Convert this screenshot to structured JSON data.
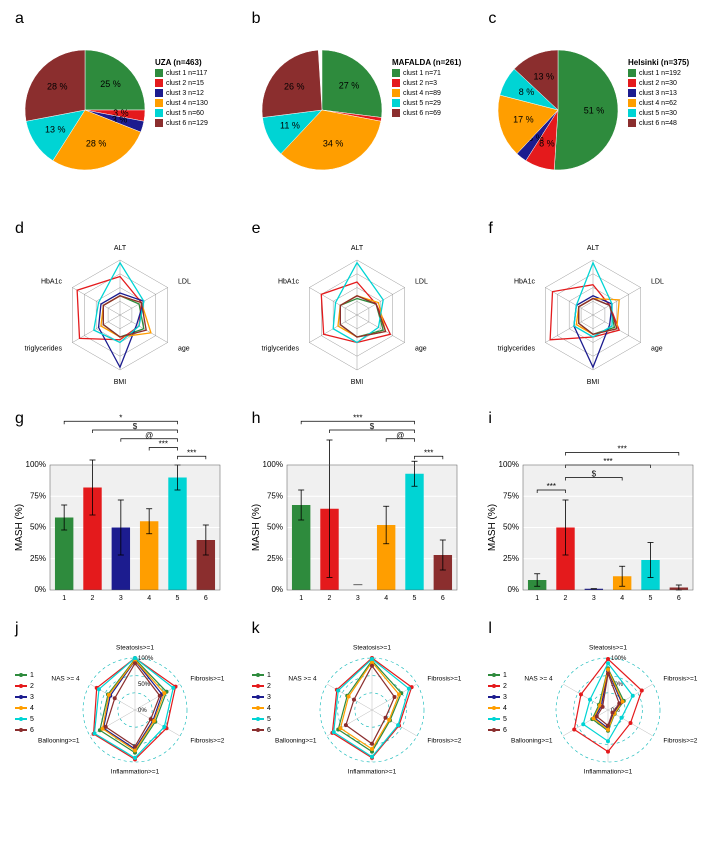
{
  "colors": {
    "c1": "#2e8b3d",
    "c2": "#e41a1c",
    "c3": "#1c1c8f",
    "c4": "#ff9e00",
    "c5": "#00d4d4",
    "c6": "#8b2e2e",
    "grid": "#808080",
    "axis": "#000000",
    "bg": "#ffffff"
  },
  "panels": {
    "a": {
      "label": "a"
    },
    "b": {
      "label": "b"
    },
    "c": {
      "label": "c"
    },
    "d": {
      "label": "d"
    },
    "e": {
      "label": "e"
    },
    "f": {
      "label": "f"
    },
    "g": {
      "label": "g"
    },
    "h": {
      "label": "h"
    },
    "i": {
      "label": "i"
    },
    "j": {
      "label": "j"
    },
    "k": {
      "label": "k"
    },
    "l": {
      "label": "l"
    }
  },
  "pies": {
    "a": {
      "title": "UZA (n=463)",
      "slices": [
        {
          "pct": 25,
          "color": "#2e8b3d",
          "label": "clust 1 n=117"
        },
        {
          "pct": 3,
          "color": "#e41a1c",
          "label": "clust 2 n=15"
        },
        {
          "pct": 3,
          "color": "#1c1c8f",
          "label": "clust 3 n=12"
        },
        {
          "pct": 28,
          "color": "#ff9e00",
          "label": "clust 4 n=130"
        },
        {
          "pct": 13,
          "color": "#00d4d4",
          "label": "clust 5 n=60"
        },
        {
          "pct": 28,
          "color": "#8b2e2e",
          "label": "clust 6 n=129"
        }
      ]
    },
    "b": {
      "title": "MAFALDA (n=261)",
      "slices": [
        {
          "pct": 27,
          "color": "#2e8b3d",
          "label": "clust 1 n=71"
        },
        {
          "pct": 1,
          "color": "#e41a1c",
          "label": "clust 2 n=3"
        },
        {
          "pct": 34,
          "color": "#ff9e00",
          "label": "clust 4 n=89"
        },
        {
          "pct": 11,
          "color": "#00d4d4",
          "label": "clust 5 n=29"
        },
        {
          "pct": 26,
          "color": "#8b2e2e",
          "label": "clust 6 n=69"
        }
      ]
    },
    "c": {
      "title": "Helsinki (n=375)",
      "slices": [
        {
          "pct": 51,
          "color": "#2e8b3d",
          "label": "clust 1 n=192"
        },
        {
          "pct": 8,
          "color": "#e41a1c",
          "label": "clust 2 n=30"
        },
        {
          "pct": 3,
          "color": "#1c1c8f",
          "label": "clust 3 n=13"
        },
        {
          "pct": 17,
          "color": "#ff9e00",
          "label": "clust 4 n=62"
        },
        {
          "pct": 8,
          "color": "#00d4d4",
          "label": "clust 5 n=30"
        },
        {
          "pct": 13,
          "color": "#8b2e2e",
          "label": "clust 6 n=48"
        }
      ]
    }
  },
  "radars1": {
    "axes": [
      "ALT",
      "LDL",
      "age",
      "BMI",
      "triglycerides",
      "HbA1c"
    ],
    "d": {
      "series": [
        {
          "color": "#2e8b3d",
          "values": [
            0.35,
            0.4,
            0.5,
            0.4,
            0.35,
            0.35
          ]
        },
        {
          "color": "#e41a1c",
          "values": [
            0.7,
            0.45,
            0.4,
            0.45,
            0.85,
            0.9
          ]
        },
        {
          "color": "#1c1c8f",
          "values": [
            0.4,
            0.5,
            0.35,
            0.95,
            0.45,
            0.4
          ]
        },
        {
          "color": "#ff9e00",
          "values": [
            0.35,
            0.45,
            0.65,
            0.4,
            0.4,
            0.35
          ]
        },
        {
          "color": "#00d4d4",
          "values": [
            0.95,
            0.5,
            0.4,
            0.5,
            0.55,
            0.45
          ]
        },
        {
          "color": "#8b2e2e",
          "values": [
            0.35,
            0.45,
            0.55,
            0.4,
            0.35,
            0.35
          ]
        }
      ]
    },
    "e": {
      "series": [
        {
          "color": "#2e8b3d",
          "values": [
            0.3,
            0.4,
            0.55,
            0.4,
            0.35,
            0.35
          ]
        },
        {
          "color": "#e41a1c",
          "values": [
            0.6,
            0.4,
            0.7,
            0.5,
            0.7,
            0.75
          ]
        },
        {
          "color": "#ff9e00",
          "values": [
            0.35,
            0.45,
            0.6,
            0.4,
            0.4,
            0.35
          ]
        },
        {
          "color": "#00d4d4",
          "values": [
            0.95,
            0.55,
            0.45,
            0.5,
            0.5,
            0.45
          ]
        },
        {
          "color": "#8b2e2e",
          "values": [
            0.35,
            0.4,
            0.6,
            0.4,
            0.35,
            0.35
          ]
        }
      ]
    },
    "f": {
      "series": [
        {
          "color": "#2e8b3d",
          "values": [
            0.3,
            0.35,
            0.45,
            0.35,
            0.3,
            0.3
          ]
        },
        {
          "color": "#e41a1c",
          "values": [
            0.55,
            0.35,
            0.55,
            0.4,
            0.9,
            0.85
          ]
        },
        {
          "color": "#1c1c8f",
          "values": [
            0.35,
            0.4,
            0.35,
            0.95,
            0.4,
            0.35
          ]
        },
        {
          "color": "#ff9e00",
          "values": [
            0.3,
            0.55,
            0.5,
            0.35,
            0.35,
            0.3
          ]
        },
        {
          "color": "#00d4d4",
          "values": [
            0.95,
            0.4,
            0.4,
            0.4,
            0.4,
            0.35
          ]
        },
        {
          "color": "#8b2e2e",
          "values": [
            0.3,
            0.35,
            0.5,
            0.35,
            0.3,
            0.3
          ]
        }
      ]
    }
  },
  "bars": {
    "ylabel": "MASH (%)",
    "yticks": [
      "0%",
      "25%",
      "50%",
      "75%",
      "100%"
    ],
    "g": {
      "values": [
        58,
        82,
        50,
        55,
        90,
        40
      ],
      "err": [
        10,
        22,
        22,
        10,
        10,
        12
      ],
      "colors": [
        "#2e8b3d",
        "#e41a1c",
        "#1c1c8f",
        "#ff9e00",
        "#00d4d4",
        "#8b2e2e"
      ],
      "sig": [
        {
          "from": 0,
          "to": 4,
          "y": 135,
          "label": "*"
        },
        {
          "from": 1,
          "to": 4,
          "y": 128,
          "label": "$"
        },
        {
          "from": 2,
          "to": 4,
          "y": 121,
          "label": "@"
        },
        {
          "from": 3,
          "to": 4,
          "y": 114,
          "label": "***"
        },
        {
          "from": 4,
          "to": 5,
          "y": 107,
          "label": "***"
        }
      ]
    },
    "h": {
      "values": [
        68,
        65,
        0,
        52,
        93,
        28
      ],
      "err": [
        12,
        55,
        0,
        15,
        10,
        12
      ],
      "colors": [
        "#2e8b3d",
        "#e41a1c",
        "#1c1c8f",
        "#ff9e00",
        "#00d4d4",
        "#8b2e2e"
      ],
      "skip": [
        2
      ],
      "sig": [
        {
          "from": 0,
          "to": 4,
          "y": 135,
          "label": "***"
        },
        {
          "from": 1,
          "to": 4,
          "y": 128,
          "label": "$"
        },
        {
          "from": 3,
          "to": 4,
          "y": 121,
          "label": "@"
        },
        {
          "from": 4,
          "to": 5,
          "y": 107,
          "label": "***"
        }
      ]
    },
    "i": {
      "values": [
        8,
        50,
        1,
        11,
        24,
        2
      ],
      "err": [
        5,
        22,
        0,
        8,
        14,
        2
      ],
      "colors": [
        "#2e8b3d",
        "#e41a1c",
        "#1c1c8f",
        "#ff9e00",
        "#00d4d4",
        "#8b2e2e"
      ],
      "sig": [
        {
          "from": 0,
          "to": 1,
          "y": 80,
          "label": "***"
        },
        {
          "from": 1,
          "to": 3,
          "y": 90,
          "label": "$"
        },
        {
          "from": 1,
          "to": 4,
          "y": 100,
          "label": "***"
        },
        {
          "from": 1,
          "to": 5,
          "y": 110,
          "label": "***"
        }
      ]
    }
  },
  "radars2": {
    "axes": [
      "Steatosis>=1",
      "Fibrosis>=1",
      "Fibrosis>=2",
      "Inflammation>=1",
      "Ballooning>=1",
      "NAS >= 4"
    ],
    "ticks": [
      "0%",
      "50%",
      "100%"
    ],
    "legend": [
      "1",
      "2",
      "3",
      "4",
      "5",
      "6"
    ],
    "j": {
      "series": [
        {
          "color": "#2e8b3d",
          "values": [
            0.98,
            0.7,
            0.45,
            0.82,
            0.78,
            0.6
          ]
        },
        {
          "color": "#e41a1c",
          "values": [
            1.0,
            0.9,
            0.7,
            0.95,
            0.92,
            0.85
          ]
        },
        {
          "color": "#1c1c8f",
          "values": [
            0.95,
            0.6,
            0.4,
            0.75,
            0.7,
            0.55
          ]
        },
        {
          "color": "#ff9e00",
          "values": [
            0.96,
            0.65,
            0.42,
            0.78,
            0.72,
            0.58
          ]
        },
        {
          "color": "#00d4d4",
          "values": [
            1.0,
            0.85,
            0.65,
            0.92,
            0.9,
            0.8
          ]
        },
        {
          "color": "#8b2e2e",
          "values": [
            0.9,
            0.55,
            0.35,
            0.7,
            0.65,
            0.45
          ]
        }
      ]
    },
    "k": {
      "series": [
        {
          "color": "#2e8b3d",
          "values": [
            0.95,
            0.65,
            0.4,
            0.8,
            0.75,
            0.55
          ]
        },
        {
          "color": "#e41a1c",
          "values": [
            1.0,
            0.88,
            0.6,
            0.92,
            0.88,
            0.78
          ]
        },
        {
          "color": "#ff9e00",
          "values": [
            0.92,
            0.6,
            0.38,
            0.75,
            0.7,
            0.52
          ]
        },
        {
          "color": "#00d4d4",
          "values": [
            0.98,
            0.82,
            0.58,
            0.9,
            0.85,
            0.75
          ]
        },
        {
          "color": "#8b2e2e",
          "values": [
            0.85,
            0.5,
            0.3,
            0.65,
            0.58,
            0.4
          ]
        }
      ]
    },
    "l": {
      "series": [
        {
          "color": "#2e8b3d",
          "values": [
            0.8,
            0.35,
            0.15,
            0.4,
            0.35,
            0.2
          ]
        },
        {
          "color": "#e41a1c",
          "values": [
            0.98,
            0.75,
            0.5,
            0.8,
            0.75,
            0.6
          ]
        },
        {
          "color": "#1c1c8f",
          "values": [
            0.75,
            0.3,
            0.12,
            0.35,
            0.3,
            0.15
          ]
        },
        {
          "color": "#ff9e00",
          "values": [
            0.78,
            0.32,
            0.14,
            0.38,
            0.32,
            0.18
          ]
        },
        {
          "color": "#00d4d4",
          "values": [
            0.9,
            0.55,
            0.3,
            0.6,
            0.55,
            0.4
          ]
        },
        {
          "color": "#8b2e2e",
          "values": [
            0.7,
            0.25,
            0.1,
            0.3,
            0.25,
            0.12
          ]
        }
      ]
    }
  }
}
